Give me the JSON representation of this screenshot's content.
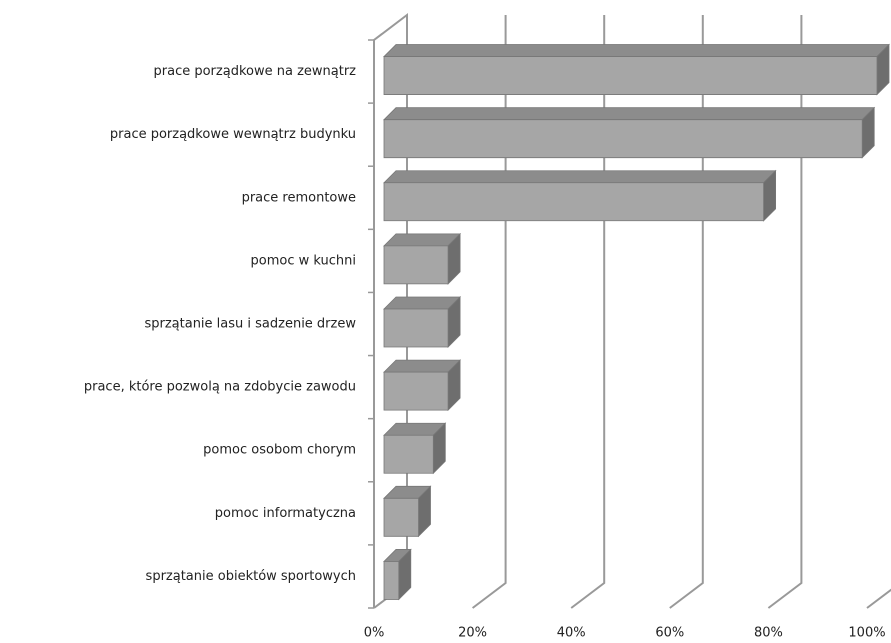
{
  "chart_data": {
    "type": "bar3d_horizontal",
    "categories": [
      "prace porządkowe na zewnątrz",
      "prace porządkowe wewnątrz budynku",
      "prace remontowe",
      "pomoc w kuchni",
      "sprzątanie lasu i sadzenie drzew",
      "prace, które pozwolą na zdobycie zawodu",
      "pomoc osobom chorym",
      "pomoc informatyczna",
      "sprzątanie obiektów sportowych"
    ],
    "values": [
      100,
      97,
      77,
      13,
      13,
      13,
      10,
      7,
      3
    ],
    "color": "#a6a6a6",
    "xlim": [
      0,
      100
    ],
    "xticks": [
      {
        "value": 0,
        "label": "0%"
      },
      {
        "value": 20,
        "label": "20%"
      },
      {
        "value": 40,
        "label": "40%"
      },
      {
        "value": 60,
        "label": "60%"
      },
      {
        "value": 80,
        "label": "80%"
      },
      {
        "value": 100,
        "label": "100%"
      }
    ],
    "grid": true
  }
}
